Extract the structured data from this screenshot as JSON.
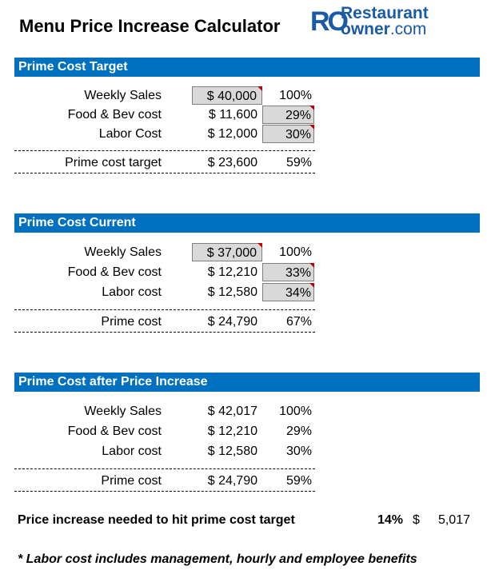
{
  "title": "Menu Price Increase Calculator",
  "logo": {
    "mark": "RO",
    "line1": "Restaurant",
    "line2_bold": "owner",
    "line2_rest": ".com"
  },
  "sections": [
    {
      "header": "Prime Cost Target",
      "rows": [
        {
          "label": "Weekly Sales",
          "amount": "$ 40,000",
          "pct": "100%"
        },
        {
          "label": "Food & Bev cost",
          "amount": "$ 11,600",
          "pct": "29%"
        },
        {
          "label": "Labor Cost",
          "amount": "$ 12,000",
          "pct": "30%"
        }
      ],
      "total": {
        "label": "Prime cost target",
        "amount": "$ 23,600",
        "pct": "59%"
      }
    },
    {
      "header": "Prime Cost Current",
      "rows": [
        {
          "label": "Weekly Sales",
          "amount": "$ 37,000",
          "pct": "100%"
        },
        {
          "label": "Food & Bev cost",
          "amount": "$ 12,210",
          "pct": "33%"
        },
        {
          "label": "Labor cost",
          "amount": "$ 12,580",
          "pct": "34%"
        }
      ],
      "total": {
        "label": "Prime cost",
        "amount": "$ 24,790",
        "pct": "67%"
      }
    },
    {
      "header": "Prime Cost after Price Increase",
      "rows": [
        {
          "label": "Weekly Sales",
          "amount": "$ 42,017",
          "pct": "100%"
        },
        {
          "label": "Food & Bev cost",
          "amount": "$ 12,210",
          "pct": "29%"
        },
        {
          "label": "Labor cost",
          "amount": "$ 12,580",
          "pct": "30%"
        }
      ],
      "total": {
        "label": "Prime cost",
        "amount": "$ 24,790",
        "pct": "59%"
      }
    }
  ],
  "summary": {
    "label": "Price increase needed to hit prime cost target",
    "pct": "14%",
    "currency": "$",
    "value": "5,017"
  },
  "note": "* Labor cost includes management, hourly and employee benefits",
  "colors": {
    "header_bg": "#0070c0",
    "input_bg": "#d9d9d9",
    "comment_marker": "#c00000",
    "logo": "#1a5aa6"
  }
}
